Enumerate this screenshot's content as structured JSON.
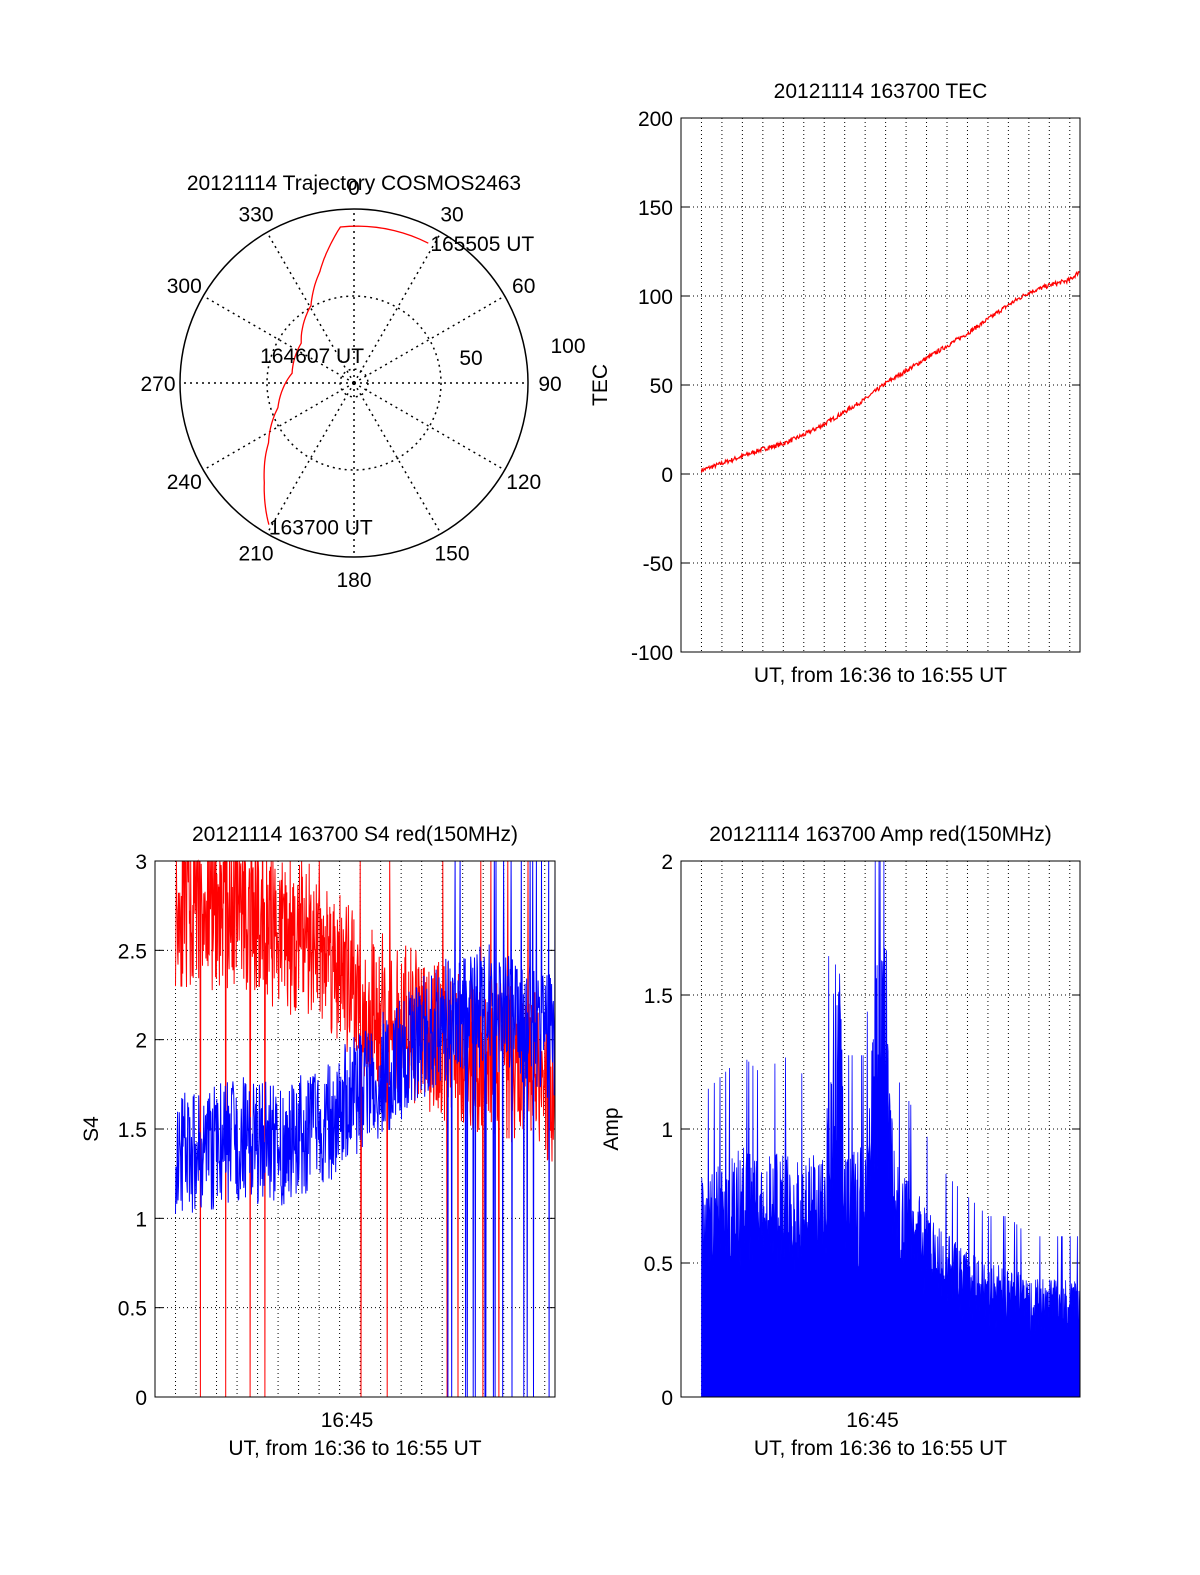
{
  "colors": {
    "red": "#ff0000",
    "blue": "#0000ff",
    "axis": "#000000",
    "grid": "#000000"
  },
  "chart_data": [
    {
      "id": "trajectory",
      "type": "polar",
      "title": "20121114 Trajectory COSMOS2463",
      "angle_labels": [
        {
          "deg": 0,
          "text": "0"
        },
        {
          "deg": 30,
          "text": "30"
        },
        {
          "deg": 60,
          "text": "60"
        },
        {
          "deg": 90,
          "text": "90"
        },
        {
          "deg": 120,
          "text": "120"
        },
        {
          "deg": 150,
          "text": "150"
        },
        {
          "deg": 180,
          "text": "180"
        },
        {
          "deg": 210,
          "text": "210"
        },
        {
          "deg": 240,
          "text": "240"
        },
        {
          "deg": 270,
          "text": "270"
        },
        {
          "deg": 300,
          "text": "300"
        },
        {
          "deg": 330,
          "text": "330"
        }
      ],
      "radial_labels": [
        {
          "r": 50,
          "text": "50"
        },
        {
          "r": 100,
          "text": "100"
        }
      ],
      "r_max": 100,
      "grid": true,
      "track": {
        "color": "#ff0000",
        "points": [
          {
            "az": 211,
            "r": 95
          },
          {
            "az": 222,
            "r": 77
          },
          {
            "az": 235,
            "r": 60
          },
          {
            "az": 252,
            "r": 46
          },
          {
            "az": 279,
            "r": 36
          },
          {
            "az": 307,
            "r": 38
          },
          {
            "az": 331,
            "r": 51
          },
          {
            "az": 343,
            "r": 67
          },
          {
            "az": 350,
            "r": 80
          },
          {
            "az": 355,
            "r": 90
          },
          {
            "az": 28,
            "r": 91
          }
        ]
      },
      "annotations": [
        {
          "text": "165505 UT",
          "az": 28,
          "r": 91
        },
        {
          "text": "164607 UT",
          "az": 279,
          "r": 36
        },
        {
          "text": "163700 UT",
          "az": 211,
          "r": 95
        }
      ]
    },
    {
      "id": "tec",
      "type": "line",
      "title": "20121114 163700 TEC",
      "ylabel": "TEC",
      "xlabel": "UT, from 16:36 to 16:55 UT",
      "ylim": [
        -100,
        200
      ],
      "yticks": [
        -100,
        -50,
        0,
        50,
        100,
        150,
        200
      ],
      "xticks": [],
      "xlim": [
        0,
        19.5
      ],
      "vgrid_count": 19,
      "series": [
        {
          "color": "#ff0000",
          "x": [
            1,
            2,
            3,
            4,
            5,
            6,
            7,
            8,
            9,
            10,
            11,
            12,
            13,
            14,
            15,
            16,
            17,
            18,
            19,
            19.5
          ],
          "values": [
            2,
            6,
            10,
            14,
            17,
            22,
            28,
            35,
            42,
            51,
            58,
            65,
            72,
            79,
            87,
            95,
            102,
            106,
            109,
            114
          ]
        }
      ]
    },
    {
      "id": "s4",
      "type": "line",
      "title": "20121114 163700 S4 red(150MHz)",
      "ylabel": "S4",
      "xlabel": "UT, from 16:36 to 16:55 UT",
      "ylim": [
        0,
        3
      ],
      "yticks": [
        0,
        0.5,
        1,
        1.5,
        2,
        2.5,
        3
      ],
      "yticklabels": [
        "0",
        "0.5",
        "1",
        "1.5",
        "2",
        "2.5",
        "3"
      ],
      "xticks": [
        "16:45"
      ],
      "xlim": [
        0,
        19.5
      ],
      "vgrid_count": 19,
      "series": [
        {
          "color": "#ff0000",
          "x": [
            0,
            2,
            4,
            6,
            8,
            9,
            10,
            12,
            14,
            16,
            18,
            19.5
          ],
          "values": [
            2.8,
            2.7,
            2.75,
            2.6,
            2.55,
            2.4,
            2.2,
            2.1,
            2.0,
            1.9,
            1.85,
            1.75
          ]
        },
        {
          "color": "#0000ff",
          "x": [
            0,
            2,
            4,
            6,
            8,
            9,
            10,
            12,
            14,
            16,
            18,
            19.5
          ],
          "values": [
            1.4,
            1.35,
            1.45,
            1.4,
            1.5,
            1.6,
            1.7,
            1.9,
            2.1,
            2.2,
            2.1,
            2.0
          ]
        }
      ]
    },
    {
      "id": "amp",
      "type": "area",
      "title": "20121114 163700 Amp red(150MHz)",
      "ylabel": "Amp",
      "xlabel": "UT, from 16:36 to 16:55 UT",
      "ylim": [
        0,
        2
      ],
      "yticks": [
        0,
        0.5,
        1,
        1.5,
        2
      ],
      "yticklabels": [
        "0",
        "0.5",
        "1",
        "1.5",
        "2"
      ],
      "xticks": [
        "16:45"
      ],
      "xlim": [
        0,
        19.5
      ],
      "vgrid_count": 19,
      "series": [
        {
          "color": "#0000ff",
          "x": [
            1,
            2,
            3,
            4,
            5,
            6,
            7,
            7.7,
            8,
            9,
            9.9,
            10.5,
            11,
            12,
            13,
            14,
            15,
            16,
            17,
            18,
            19,
            19.5
          ],
          "values": [
            0.75,
            0.8,
            0.85,
            0.8,
            0.85,
            0.8,
            0.85,
            1.65,
            0.85,
            0.85,
            1.8,
            0.8,
            0.75,
            0.65,
            0.55,
            0.5,
            0.45,
            0.45,
            0.4,
            0.4,
            0.4,
            0.4
          ]
        }
      ]
    }
  ]
}
